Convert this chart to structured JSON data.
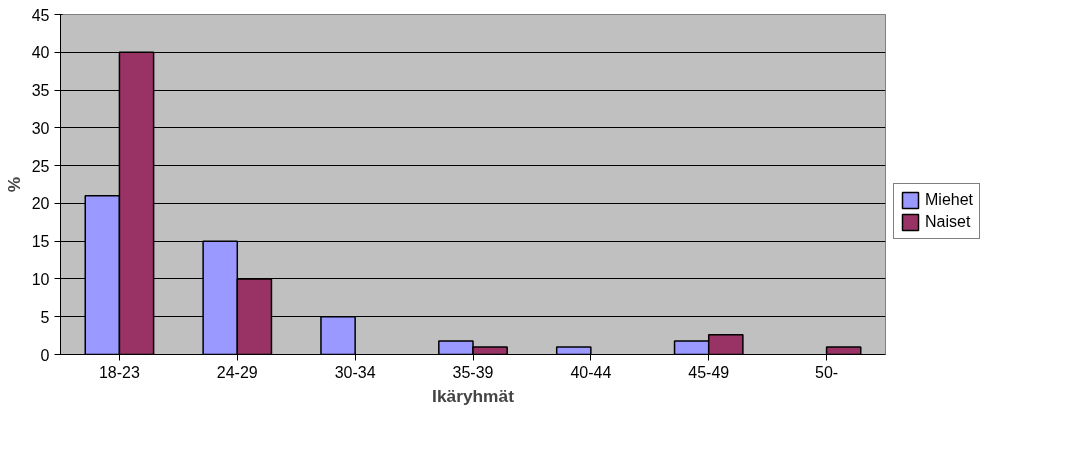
{
  "chart_data": {
    "type": "bar",
    "xlabel": "Ikäryhmät",
    "ylabel": "%",
    "categories": [
      "18-23",
      "24-29",
      "30-34",
      "35-39",
      "40-44",
      "45-49",
      "50-"
    ],
    "series": [
      {
        "name": "Miehet",
        "color": "#9999ff",
        "values": [
          21,
          15,
          5,
          1.8,
          1,
          1.8,
          null
        ]
      },
      {
        "name": "Naiset",
        "color": "#993366",
        "values": [
          40,
          10,
          null,
          1,
          null,
          2.6,
          1
        ]
      }
    ],
    "ylim": [
      0,
      45
    ],
    "yticks": [
      0,
      5,
      10,
      15,
      20,
      25,
      30,
      35,
      40,
      45
    ],
    "grid": "y",
    "legend": "right"
  }
}
